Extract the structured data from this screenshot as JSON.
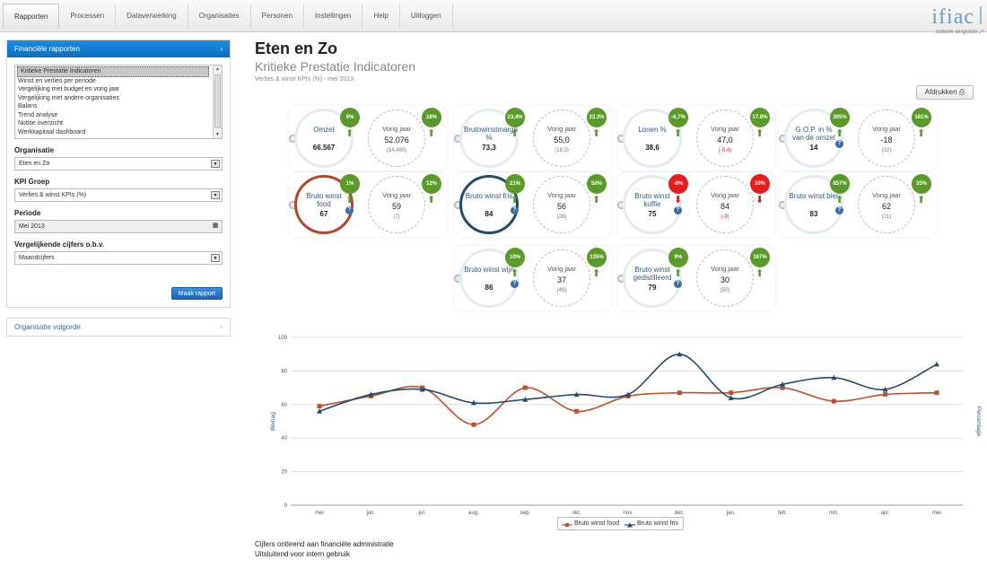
{
  "nav": {
    "tabs": [
      "Rapporten",
      "Processen",
      "Dataverwerking",
      "Organisaties",
      "Personen",
      "Instellingen",
      "Help",
      "Uitloggen"
    ],
    "active": "Rapporten"
  },
  "logo": "ifiac",
  "fullscreen_label": "scherm vergroten",
  "sidebar": {
    "panel_title": "Financiële rapporten",
    "reports": [
      "Kritieke Prestatie Indicatoren",
      "Winst en verlies per periode",
      "Vergelijking met budget en vorig jaar",
      "Vergelijking met andere organisaties",
      "Balans",
      "Trend analyse",
      "Notitie overzicht",
      "Werkkapitaal dashboard"
    ],
    "selected_report": "Kritieke Prestatie Indicatoren",
    "organisatie_label": "Organisatie",
    "organisatie_value": "Eten en Zo",
    "kpi_group_label": "KPI Groep",
    "kpi_group_value": "Verlies & winst KPIs (%)",
    "periode_label": "Periode",
    "periode_value": "Mei 2013",
    "vergelijk_label": "Vergelijkende cijfers o.b.v.",
    "vergelijk_value": "Maandcijfers",
    "make_report": "Maak rapport",
    "org_order": "Organisatie volgorde"
  },
  "header": {
    "title": "Eten en Zo",
    "subtitle": "Kritieke Prestatie Indicatoren",
    "crumb": "Verlies & winst KPIs (%) - mei 2013",
    "print": "Afdrukken"
  },
  "kpis": [
    {
      "name": "Omzet",
      "value": "66.567",
      "badge": "9%",
      "badge_color": "#5a9a2a",
      "prev_label": "Vorig jaar",
      "prev_value": "52.076",
      "prev_delta": "(14.490)",
      "prev_badge": "28%",
      "prev_badge_color": "#5a9a2a",
      "ring": "plain",
      "help": false
    },
    {
      "name": "Brutowinstmarge %",
      "value": "73,3",
      "badge": "23,4%",
      "badge_color": "#5a9a2a",
      "prev_label": "Vorig jaar",
      "prev_value": "55,0",
      "prev_delta": "(18,3)",
      "prev_badge": "33.3%",
      "prev_badge_color": "#5a9a2a",
      "ring": "plain",
      "help": false
    },
    {
      "name": "Lonen %",
      "value": "38,6",
      "badge": "-6,7%",
      "badge_color": "#5a9a2a",
      "prev_label": "Vorig jaar",
      "prev_value": "47,0",
      "prev_delta": "(-8,4)",
      "prev_badge": "17.8%",
      "prev_badge_color": "#5a9a2a",
      "ring": "plain",
      "help": false
    },
    {
      "name": "G.O.P. in % van de omzet",
      "value": "14",
      "badge": "305%",
      "badge_color": "#5a9a2a",
      "prev_label": "Vorig jaar",
      "prev_value": "-18",
      "prev_delta": "(32)",
      "prev_badge": "181%",
      "prev_badge_color": "#5a9a2a",
      "ring": "plain",
      "help": true
    },
    {
      "name": "Bruto winst food",
      "value": "67",
      "badge": "1%",
      "badge_color": "#5a9a2a",
      "prev_label": "Vorig jaar",
      "prev_value": "59",
      "prev_delta": "(7)",
      "prev_badge": "12%",
      "prev_badge_color": "#5a9a2a",
      "ring": "red",
      "help": true
    },
    {
      "name": "Bruto winst fris",
      "value": "84",
      "badge": "21%",
      "badge_color": "#5a9a2a",
      "prev_label": "Vorig jaar",
      "prev_value": "56",
      "prev_delta": "(28)",
      "prev_badge": "50%",
      "prev_badge_color": "#5a9a2a",
      "ring": "navy",
      "help": true
    },
    {
      "name": "Bruto winst koffie",
      "value": "75",
      "badge": "-8%",
      "badge_color": "#e81c1c",
      "prev_label": "Vorig jaar",
      "prev_value": "84",
      "prev_delta": "(-9)",
      "prev_badge": "10%",
      "prev_badge_color": "#e81c1c",
      "ring": "plain",
      "help": true
    },
    {
      "name": "Bruto winst bier",
      "value": "83",
      "badge": "857%",
      "badge_color": "#5a9a2a",
      "prev_label": "Vorig jaar",
      "prev_value": "62",
      "prev_delta": "(21)",
      "prev_badge": "35%",
      "prev_badge_color": "#5a9a2a",
      "ring": "plain",
      "help": true
    },
    {
      "name": "Bruto winst wijn",
      "value": "86",
      "badge": "10%",
      "badge_color": "#5a9a2a",
      "prev_label": "Vorig jaar",
      "prev_value": "37",
      "prev_delta": "(49)",
      "prev_badge": "135%",
      "prev_badge_color": "#5a9a2a",
      "ring": "plain",
      "help": true
    },
    {
      "name": "Bruto winst gedistilleerd",
      "value": "79",
      "badge": "9%",
      "badge_color": "#5a9a2a",
      "prev_label": "Vorig jaar",
      "prev_value": "30",
      "prev_delta": "(50)",
      "prev_badge": "167%",
      "prev_badge_color": "#5a9a2a",
      "ring": "plain",
      "help": true
    }
  ],
  "chart_data": {
    "type": "line",
    "categories": [
      "mei",
      "jun.",
      "jul.",
      "aug.",
      "sep.",
      "okt.",
      "nov.",
      "dec.",
      "jan.",
      "feb.",
      "mrt.",
      "apr.",
      "mei"
    ],
    "series": [
      {
        "name": "Bruto winst food",
        "color": "#c0502b",
        "marker": "square",
        "values": [
          59,
          65,
          70,
          48,
          70,
          56,
          65,
          67,
          67,
          70,
          62,
          66,
          67
        ]
      },
      {
        "name": "Bruto winst fris",
        "color": "#1e4c74",
        "marker": "triangle",
        "values": [
          56,
          66,
          69,
          61,
          63,
          66,
          66,
          90,
          64,
          72,
          76,
          69,
          84
        ]
      }
    ],
    "ylabel": "Bedrag",
    "ylabel_right": "Percentage",
    "ylim": [
      0,
      100
    ],
    "yticks": [
      0,
      20,
      40,
      60,
      80,
      100
    ],
    "grid": true,
    "legend": "bottom-center"
  },
  "footer": {
    "line1": "Cijfers ontleend aan financiële administratie",
    "line2": "Uitsluitend voor intern gebruik"
  }
}
